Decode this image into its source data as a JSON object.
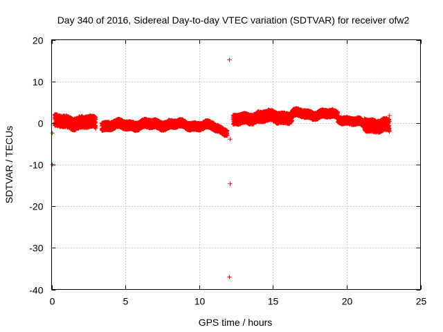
{
  "chart_data": {
    "type": "scatter",
    "title": "Day 340 of 2016, Sidereal Day-to-day VTEC variation (SDTVAR) for receiver ofw2",
    "xlabel": "GPS time / hours",
    "ylabel": "SDTVAR / TECUs",
    "xlim": [
      0,
      25
    ],
    "ylim": [
      -40,
      20
    ],
    "xticks": [
      0,
      5,
      10,
      15,
      20,
      25
    ],
    "yticks": [
      -40,
      -30,
      -20,
      -10,
      0,
      10,
      20
    ],
    "grid": true,
    "marker": "+",
    "color": "#ff0000",
    "series": [
      {
        "name": "SDTVAR",
        "bands": [
          {
            "x_start": 0.2,
            "x_end": 3.0,
            "center_start": 0.3,
            "center_end": 0.0,
            "half_width": 1.4
          },
          {
            "x_start": 3.4,
            "x_end": 8.0,
            "center_start": -0.6,
            "center_end": -0.3,
            "half_width": 1.0
          },
          {
            "x_start": 8.0,
            "x_end": 11.0,
            "center_start": -0.3,
            "center_end": -0.8,
            "half_width": 0.9
          },
          {
            "x_start": 11.0,
            "x_end": 11.9,
            "center_start": -1.0,
            "center_end": -2.0,
            "half_width": 0.8
          },
          {
            "x_start": 12.3,
            "x_end": 14.0,
            "center_start": 0.4,
            "center_end": 1.6,
            "half_width": 1.2
          },
          {
            "x_start": 14.0,
            "x_end": 16.3,
            "center_start": 1.5,
            "center_end": 1.4,
            "half_width": 1.3
          },
          {
            "x_start": 16.3,
            "x_end": 19.4,
            "center_start": 2.2,
            "center_end": 2.0,
            "half_width": 0.9
          },
          {
            "x_start": 19.4,
            "x_end": 21.2,
            "center_start": 1.2,
            "center_end": -0.3,
            "half_width": 0.8
          },
          {
            "x_start": 21.2,
            "x_end": 22.9,
            "center_start": -0.3,
            "center_end": -0.8,
            "half_width": 1.5
          }
        ],
        "points": [
          {
            "x": 0.05,
            "y": -2.4
          },
          {
            "x": 0.05,
            "y": -10.0
          },
          {
            "x": 12.05,
            "y": 15.2
          },
          {
            "x": 12.1,
            "y": -3.9
          },
          {
            "x": 12.1,
            "y": -14.6
          },
          {
            "x": 12.05,
            "y": -37.0
          },
          {
            "x": 22.9,
            "y": 1.8
          }
        ]
      }
    ]
  }
}
